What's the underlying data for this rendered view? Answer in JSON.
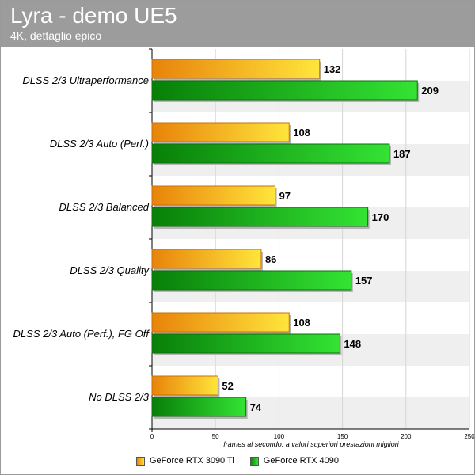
{
  "header": {
    "title": "Lyra - demo UE5",
    "subtitle": "4K, dettaglio epico"
  },
  "colors": {
    "header_bg": "#9c9c9c",
    "series_orange": "#f5a623",
    "series_green": "#22b022"
  },
  "chart_data": {
    "type": "bar",
    "orientation": "horizontal",
    "categories": [
      "DLSS 2/3 Ultraperformance",
      "DLSS 2/3 Auto (Perf.)",
      "DLSS 2/3 Balanced",
      "DLSS 2/3 Quality",
      "DLSS 2/3 Auto (Perf.), FG Off",
      "No DLSS 2/3"
    ],
    "series": [
      {
        "name": "GeForce RTX 3090 Ti",
        "color": "#f5a623",
        "values": [
          132,
          108,
          97,
          86,
          108,
          52
        ]
      },
      {
        "name": "GeForce RTX 4090",
        "color": "#22b022",
        "values": [
          209,
          187,
          170,
          157,
          148,
          74
        ]
      }
    ],
    "xlim": [
      0,
      250
    ],
    "xticks": [
      "0",
      "50",
      "100",
      "150",
      "200",
      "250"
    ],
    "xlabel": "frames al secondo: a valori superiori prestazioni migliori",
    "ylabel": "",
    "grid": true,
    "legend": "bottom"
  }
}
